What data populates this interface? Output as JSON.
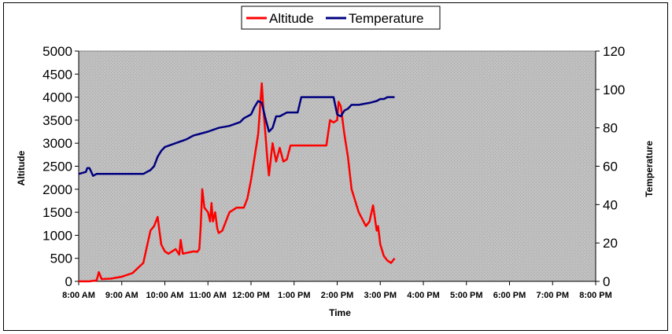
{
  "chart_data": {
    "type": "line",
    "title": "",
    "xlabel": "Time",
    "ylabel": "Altitude",
    "y2label": "Temperature",
    "x_ticks": [
      "8:00 AM",
      "9:00 AM",
      "10:00 AM",
      "11:00 AM",
      "12:00 PM",
      "1:00 PM",
      "2:00 PM",
      "3:00 PM",
      "4:00 PM",
      "5:00 PM",
      "6:00 PM",
      "7:00 PM",
      "8:00 PM"
    ],
    "y_ticks": [
      "0",
      "500",
      "1000",
      "1500",
      "2000",
      "2500",
      "3000",
      "3500",
      "4000",
      "4500",
      "5000"
    ],
    "y2_ticks": [
      "0",
      "20",
      "40",
      "60",
      "80",
      "100",
      "120"
    ],
    "ylim": [
      0,
      5000
    ],
    "y2lim": [
      0,
      120
    ],
    "xlim_hours": [
      8,
      20
    ],
    "legend_position": "top-center",
    "plot_background": "#c0c0c0",
    "grid": false,
    "series": [
      {
        "name": "Altitude",
        "axis": "left",
        "color": "#ff0000",
        "x": [
          "8:00",
          "8:15",
          "8:25",
          "8:28",
          "8:32",
          "8:45",
          "9:00",
          "9:15",
          "9:30",
          "9:40",
          "9:45",
          "9:50",
          "9:52",
          "9:55",
          "10:00",
          "10:05",
          "10:15",
          "10:20",
          "10:22",
          "10:25",
          "10:40",
          "10:45",
          "10:48",
          "10:50",
          "10:52",
          "10:55",
          "11:00",
          "11:03",
          "11:05",
          "11:07",
          "11:10",
          "11:13",
          "11:15",
          "11:20",
          "11:30",
          "11:40",
          "11:50",
          "11:55",
          "12:00",
          "12:10",
          "12:15",
          "12:17",
          "12:20",
          "12:23",
          "12:25",
          "12:30",
          "12:35",
          "12:40",
          "12:45",
          "12:50",
          "12:55",
          "1:00",
          "1:05",
          "1:30",
          "1:45",
          "1:50",
          "1:55",
          "2:00",
          "2:02",
          "2:05",
          "2:10",
          "2:15",
          "2:20",
          "2:30",
          "2:40",
          "2:45",
          "2:50",
          "2:55",
          "2:57",
          "3:00",
          "3:05",
          "3:10",
          "3:15",
          "3:20"
        ],
        "values": [
          0,
          0,
          20,
          200,
          50,
          60,
          100,
          180,
          400,
          1100,
          1200,
          1400,
          1150,
          800,
          650,
          600,
          700,
          580,
          900,
          600,
          650,
          640,
          700,
          1200,
          2000,
          1600,
          1500,
          1300,
          1700,
          1300,
          1500,
          1150,
          1050,
          1100,
          1500,
          1600,
          1600,
          1800,
          2200,
          3200,
          4300,
          3800,
          3200,
          2600,
          2300,
          3000,
          2600,
          2900,
          2600,
          2650,
          2950,
          2950,
          2950,
          2950,
          2950,
          3500,
          3450,
          3500,
          3900,
          3800,
          3200,
          2700,
          2000,
          1500,
          1200,
          1300,
          1650,
          1100,
          1200,
          800,
          550,
          450,
          400,
          500
        ]
      },
      {
        "name": "Temperature",
        "axis": "right",
        "color": "#000080",
        "x": [
          "8:00",
          "8:10",
          "8:12",
          "8:15",
          "8:20",
          "8:25",
          "8:30",
          "9:00",
          "9:30",
          "9:40",
          "9:45",
          "9:50",
          "9:55",
          "10:00",
          "10:15",
          "10:30",
          "10:40",
          "10:50",
          "11:00",
          "11:15",
          "11:30",
          "11:45",
          "11:50",
          "12:00",
          "12:05",
          "12:10",
          "12:15",
          "12:20",
          "12:25",
          "12:30",
          "12:35",
          "12:40",
          "12:50",
          "12:55",
          "1:00",
          "1:05",
          "1:10",
          "1:40",
          "1:45",
          "1:50",
          "1:55",
          "2:00",
          "2:05",
          "2:10",
          "2:15",
          "2:20",
          "2:30",
          "2:45",
          "2:55",
          "3:00",
          "3:05",
          "3:10",
          "3:15",
          "3:20"
        ],
        "values": [
          56,
          57,
          59,
          59,
          55,
          56,
          56,
          56,
          56,
          58,
          60,
          65,
          68,
          70,
          72,
          74,
          76,
          77,
          78,
          80,
          81,
          83,
          85,
          87,
          91,
          94,
          93,
          85,
          78,
          80,
          86,
          86,
          88,
          88,
          88,
          88,
          96,
          96,
          96,
          96,
          96,
          87,
          86,
          89,
          90,
          92,
          92,
          93,
          94,
          95,
          95,
          96,
          96,
          96
        ]
      }
    ]
  }
}
